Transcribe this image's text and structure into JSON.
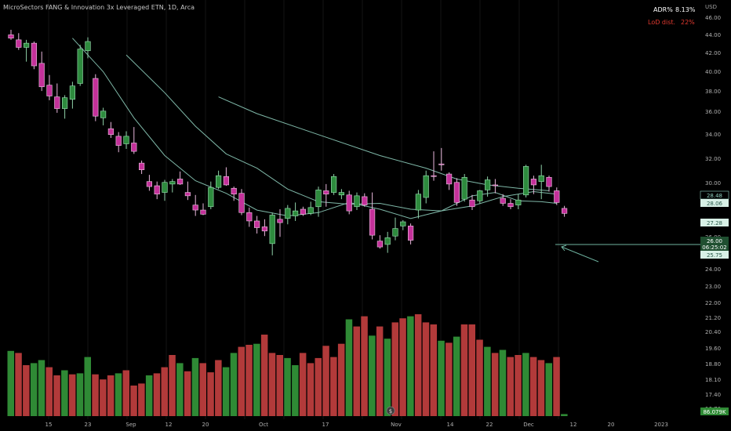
{
  "chart_title": "MicroSectors FANG & Innovation 3x Leveraged ETN, 1D, Arca",
  "currency": "USD",
  "indicators": {
    "adr_label": "ADR%",
    "adr_value": "8.13%",
    "lod_label": "LoD dist.",
    "lod_value": "22%"
  },
  "price_labels": {
    "ma_upper": "28.48",
    "ma_lower": "28.06",
    "ma_third": "27.28",
    "last_price": "26.00",
    "countdown": "06:25:02",
    "low_tag": "25.75",
    "volume": "86.079K"
  },
  "colors": {
    "background": "#000000",
    "up": "#2e8b3e",
    "down": "#c4319a",
    "bear_volume": "#b23a3a",
    "bull_volume": "#2f8a35",
    "ma_line": "#7fb8a8",
    "axis_text": "#b0b0b0",
    "grid": "#141414",
    "adr_color": "#ffffff",
    "lod_color": "#e0392f"
  },
  "chart_data": {
    "type": "candlestick",
    "title": "MicroSectors FANG & Innovation 3x Leveraged ETN, 1D, Arca",
    "y_axis_ticks": [
      "46.00",
      "44.00",
      "42.00",
      "40.00",
      "38.00",
      "36.00",
      "34.00",
      "32.00",
      "30.00",
      "28.00",
      "26.00",
      "24.00",
      "23.00",
      "22.00",
      "21.20",
      "20.40",
      "19.60",
      "18.80",
      "18.10",
      "17.40",
      "16.70"
    ],
    "x_axis_ticks": [
      "15",
      "23",
      "Sep",
      "12",
      "20",
      "Oct",
      "17",
      "Nov",
      "14",
      "22",
      "Dec",
      "12",
      "20",
      "2023"
    ],
    "candles": [
      {
        "o": 47.4,
        "h": 48.0,
        "l": 46.8,
        "c": 47.0
      },
      {
        "o": 46.8,
        "h": 47.6,
        "l": 45.6,
        "c": 45.9
      },
      {
        "o": 45.9,
        "h": 46.8,
        "l": 44.2,
        "c": 46.4
      },
      {
        "o": 46.4,
        "h": 46.6,
        "l": 43.3,
        "c": 43.7
      },
      {
        "o": 44.0,
        "h": 45.4,
        "l": 40.7,
        "c": 41.2
      },
      {
        "o": 41.4,
        "h": 42.6,
        "l": 39.6,
        "c": 40.1
      },
      {
        "o": 40.0,
        "h": 41.6,
        "l": 38.1,
        "c": 38.6
      },
      {
        "o": 38.6,
        "h": 40.2,
        "l": 37.4,
        "c": 39.9
      },
      {
        "o": 39.7,
        "h": 41.8,
        "l": 38.6,
        "c": 41.3
      },
      {
        "o": 41.6,
        "h": 46.2,
        "l": 41.3,
        "c": 45.7
      },
      {
        "o": 45.5,
        "h": 47.1,
        "l": 44.6,
        "c": 46.6
      },
      {
        "o": 42.2,
        "h": 42.7,
        "l": 37.1,
        "c": 37.7
      },
      {
        "o": 37.5,
        "h": 38.7,
        "l": 36.6,
        "c": 38.3
      },
      {
        "o": 36.2,
        "h": 37.0,
        "l": 35.1,
        "c": 35.5
      },
      {
        "o": 35.3,
        "h": 35.8,
        "l": 33.4,
        "c": 34.2
      },
      {
        "o": 34.4,
        "h": 35.9,
        "l": 33.8,
        "c": 35.3
      },
      {
        "o": 34.5,
        "h": 36.4,
        "l": 33.2,
        "c": 33.5
      },
      {
        "o": 32.1,
        "h": 32.4,
        "l": 30.8,
        "c": 31.3
      },
      {
        "o": 29.9,
        "h": 30.7,
        "l": 28.8,
        "c": 29.3
      },
      {
        "o": 29.4,
        "h": 29.9,
        "l": 27.8,
        "c": 28.4
      },
      {
        "o": 28.6,
        "h": 30.1,
        "l": 27.6,
        "c": 29.8
      },
      {
        "o": 29.6,
        "h": 30.2,
        "l": 28.6,
        "c": 29.9
      },
      {
        "o": 30.2,
        "h": 31.1,
        "l": 29.5,
        "c": 29.6
      },
      {
        "o": 28.6,
        "h": 29.9,
        "l": 27.7,
        "c": 28.2
      },
      {
        "o": 27.1,
        "h": 28.3,
        "l": 25.8,
        "c": 26.5
      },
      {
        "o": 26.5,
        "h": 27.3,
        "l": 25.9,
        "c": 26.0
      },
      {
        "o": 26.9,
        "h": 29.9,
        "l": 26.6,
        "c": 29.2
      },
      {
        "o": 29.2,
        "h": 31.2,
        "l": 29.0,
        "c": 30.6
      },
      {
        "o": 30.5,
        "h": 31.6,
        "l": 29.4,
        "c": 29.5
      },
      {
        "o": 29.1,
        "h": 29.3,
        "l": 27.6,
        "c": 28.4
      },
      {
        "o": 28.5,
        "h": 29.0,
        "l": 25.9,
        "c": 26.2
      },
      {
        "o": 26.2,
        "h": 26.8,
        "l": 24.5,
        "c": 25.2
      },
      {
        "o": 25.2,
        "h": 25.8,
        "l": 23.7,
        "c": 24.4
      },
      {
        "o": 24.5,
        "h": 25.4,
        "l": 23.4,
        "c": 24.0
      },
      {
        "o": 22.5,
        "h": 26.2,
        "l": 21.1,
        "c": 25.9
      },
      {
        "o": 25.4,
        "h": 26.6,
        "l": 23.3,
        "c": 25.0
      },
      {
        "o": 25.5,
        "h": 27.1,
        "l": 24.8,
        "c": 26.7
      },
      {
        "o": 25.8,
        "h": 27.4,
        "l": 25.2,
        "c": 26.4
      },
      {
        "o": 26.6,
        "h": 26.9,
        "l": 25.8,
        "c": 26.0
      },
      {
        "o": 26.1,
        "h": 27.5,
        "l": 25.9,
        "c": 26.8
      },
      {
        "o": 26.9,
        "h": 29.3,
        "l": 25.7,
        "c": 28.9
      },
      {
        "o": 28.8,
        "h": 29.6,
        "l": 26.9,
        "c": 28.4
      },
      {
        "o": 28.6,
        "h": 30.8,
        "l": 28.3,
        "c": 30.5
      },
      {
        "o": 28.3,
        "h": 29.0,
        "l": 27.8,
        "c": 28.6
      },
      {
        "o": 28.3,
        "h": 28.8,
        "l": 26.0,
        "c": 26.4
      },
      {
        "o": 26.9,
        "h": 28.6,
        "l": 26.5,
        "c": 28.2
      },
      {
        "o": 28.1,
        "h": 28.5,
        "l": 26.9,
        "c": 27.1
      },
      {
        "o": 26.6,
        "h": 28.6,
        "l": 23.0,
        "c": 23.5
      },
      {
        "o": 22.8,
        "h": 23.5,
        "l": 21.9,
        "c": 22.1
      },
      {
        "o": 22.4,
        "h": 23.9,
        "l": 21.4,
        "c": 23.2
      },
      {
        "o": 23.4,
        "h": 25.6,
        "l": 22.9,
        "c": 24.3
      },
      {
        "o": 24.6,
        "h": 25.3,
        "l": 24.1,
        "c": 25.1
      },
      {
        "o": 24.6,
        "h": 24.9,
        "l": 22.4,
        "c": 22.9
      },
      {
        "o": 26.5,
        "h": 28.9,
        "l": 25.5,
        "c": 28.4
      },
      {
        "o": 28.0,
        "h": 31.2,
        "l": 27.3,
        "c": 30.6
      },
      {
        "o": 30.6,
        "h": 33.5,
        "l": 30.0,
        "c": 30.5
      },
      {
        "o": 32.0,
        "h": 33.9,
        "l": 31.2,
        "c": 31.9
      },
      {
        "o": 30.8,
        "h": 31.0,
        "l": 28.9,
        "c": 29.6
      },
      {
        "o": 29.8,
        "h": 30.3,
        "l": 27.0,
        "c": 27.4
      },
      {
        "o": 27.8,
        "h": 30.8,
        "l": 27.5,
        "c": 30.4
      },
      {
        "o": 27.7,
        "h": 28.3,
        "l": 26.5,
        "c": 26.9
      },
      {
        "o": 27.6,
        "h": 28.9,
        "l": 27.3,
        "c": 28.8
      },
      {
        "o": 28.9,
        "h": 30.5,
        "l": 28.1,
        "c": 30.1
      },
      {
        "o": 29.5,
        "h": 30.2,
        "l": 28.5,
        "c": 29.4
      },
      {
        "o": 27.9,
        "h": 28.4,
        "l": 27.0,
        "c": 27.3
      },
      {
        "o": 27.3,
        "h": 27.8,
        "l": 26.6,
        "c": 26.9
      },
      {
        "o": 27.1,
        "h": 28.4,
        "l": 26.6,
        "c": 27.7
      },
      {
        "o": 28.3,
        "h": 31.9,
        "l": 28.0,
        "c": 31.7
      },
      {
        "o": 30.2,
        "h": 30.6,
        "l": 28.4,
        "c": 29.5
      },
      {
        "o": 29.9,
        "h": 31.9,
        "l": 27.8,
        "c": 30.6
      },
      {
        "o": 30.4,
        "h": 30.6,
        "l": 28.7,
        "c": 29.3
      },
      {
        "o": 28.8,
        "h": 29.2,
        "l": 27.1,
        "c": 27.4
      },
      {
        "o": 26.7,
        "h": 27.0,
        "l": 25.7,
        "c": 26.1
      }
    ],
    "volume": [
      {
        "v": 0.64,
        "up": true
      },
      {
        "v": 0.62,
        "up": false
      },
      {
        "v": 0.5,
        "up": false
      },
      {
        "v": 0.52,
        "up": true
      },
      {
        "v": 0.55,
        "up": true
      },
      {
        "v": 0.48,
        "up": false
      },
      {
        "v": 0.4,
        "up": false
      },
      {
        "v": 0.45,
        "up": true
      },
      {
        "v": 0.41,
        "up": false
      },
      {
        "v": 0.42,
        "up": true
      },
      {
        "v": 0.58,
        "up": true
      },
      {
        "v": 0.41,
        "up": false
      },
      {
        "v": 0.36,
        "up": false
      },
      {
        "v": 0.4,
        "up": false
      },
      {
        "v": 0.42,
        "up": true
      },
      {
        "v": 0.45,
        "up": false
      },
      {
        "v": 0.3,
        "up": false
      },
      {
        "v": 0.32,
        "up": false
      },
      {
        "v": 0.4,
        "up": true
      },
      {
        "v": 0.42,
        "up": false
      },
      {
        "v": 0.48,
        "up": false
      },
      {
        "v": 0.6,
        "up": false
      },
      {
        "v": 0.52,
        "up": true
      },
      {
        "v": 0.44,
        "up": false
      },
      {
        "v": 0.57,
        "up": true
      },
      {
        "v": 0.52,
        "up": false
      },
      {
        "v": 0.43,
        "up": false
      },
      {
        "v": 0.55,
        "up": false
      },
      {
        "v": 0.48,
        "up": true
      },
      {
        "v": 0.62,
        "up": true
      },
      {
        "v": 0.68,
        "up": false
      },
      {
        "v": 0.7,
        "up": false
      },
      {
        "v": 0.71,
        "up": true
      },
      {
        "v": 0.8,
        "up": false
      },
      {
        "v": 0.62,
        "up": false
      },
      {
        "v": 0.6,
        "up": false
      },
      {
        "v": 0.57,
        "up": true
      },
      {
        "v": 0.5,
        "up": true
      },
      {
        "v": 0.62,
        "up": false
      },
      {
        "v": 0.52,
        "up": false
      },
      {
        "v": 0.57,
        "up": false
      },
      {
        "v": 0.69,
        "up": false
      },
      {
        "v": 0.58,
        "up": false
      },
      {
        "v": 0.71,
        "up": false
      },
      {
        "v": 0.95,
        "up": true
      },
      {
        "v": 0.88,
        "up": false
      },
      {
        "v": 0.98,
        "up": false
      },
      {
        "v": 0.79,
        "up": true
      },
      {
        "v": 0.88,
        "up": false
      },
      {
        "v": 0.76,
        "up": true
      },
      {
        "v": 0.92,
        "up": false
      },
      {
        "v": 0.96,
        "up": false
      },
      {
        "v": 0.98,
        "up": true
      },
      {
        "v": 1.0,
        "up": false
      },
      {
        "v": 0.92,
        "up": false
      },
      {
        "v": 0.9,
        "up": false
      },
      {
        "v": 0.74,
        "up": true
      },
      {
        "v": 0.72,
        "up": false
      },
      {
        "v": 0.78,
        "up": true
      },
      {
        "v": 0.9,
        "up": false
      },
      {
        "v": 0.9,
        "up": false
      },
      {
        "v": 0.75,
        "up": false
      },
      {
        "v": 0.68,
        "up": true
      },
      {
        "v": 0.62,
        "up": false
      },
      {
        "v": 0.65,
        "up": true
      },
      {
        "v": 0.58,
        "up": false
      },
      {
        "v": 0.6,
        "up": false
      },
      {
        "v": 0.62,
        "up": true
      },
      {
        "v": 0.58,
        "up": false
      },
      {
        "v": 0.55,
        "up": false
      },
      {
        "v": 0.52,
        "up": true
      },
      {
        "v": 0.58,
        "up": false
      },
      {
        "v": 0.02,
        "up": true
      }
    ],
    "ma_upper": [
      {
        "i": 27,
        "v": 40.0
      },
      {
        "i": 32,
        "v": 38.0
      },
      {
        "i": 40,
        "v": 35.5
      },
      {
        "i": 48,
        "v": 33.0
      },
      {
        "i": 54,
        "v": 31.5
      },
      {
        "i": 58,
        "v": 30.2
      },
      {
        "i": 62,
        "v": 29.5
      },
      {
        "i": 66,
        "v": 29.1
      },
      {
        "i": 70,
        "v": 28.8
      }
    ],
    "ma_mid": [
      {
        "i": 15,
        "v": 45.0
      },
      {
        "i": 20,
        "v": 40.5
      },
      {
        "i": 24,
        "v": 36.5
      },
      {
        "i": 28,
        "v": 33.2
      },
      {
        "i": 32,
        "v": 31.5
      },
      {
        "i": 36,
        "v": 29.0
      },
      {
        "i": 40,
        "v": 27.5
      },
      {
        "i": 44,
        "v": 27.2
      },
      {
        "i": 48,
        "v": 27.3
      },
      {
        "i": 52,
        "v": 26.6
      },
      {
        "i": 56,
        "v": 26.4
      },
      {
        "i": 60,
        "v": 27.0
      },
      {
        "i": 64,
        "v": 28.1
      },
      {
        "i": 68,
        "v": 28.7
      },
      {
        "i": 71,
        "v": 28.4
      }
    ],
    "ma_fast": [
      {
        "i": 8,
        "v": 47.0
      },
      {
        "i": 12,
        "v": 43.0
      },
      {
        "i": 16,
        "v": 37.5
      },
      {
        "i": 20,
        "v": 33.0
      },
      {
        "i": 24,
        "v": 30.0
      },
      {
        "i": 28,
        "v": 28.5
      },
      {
        "i": 32,
        "v": 26.5
      },
      {
        "i": 36,
        "v": 25.8
      },
      {
        "i": 40,
        "v": 26.2
      },
      {
        "i": 44,
        "v": 27.4
      },
      {
        "i": 48,
        "v": 26.6
      },
      {
        "i": 52,
        "v": 25.5
      },
      {
        "i": 56,
        "v": 26.4
      },
      {
        "i": 60,
        "v": 28.2
      },
      {
        "i": 63,
        "v": 28.6
      },
      {
        "i": 66,
        "v": 27.6
      },
      {
        "i": 69,
        "v": 27.5
      },
      {
        "i": 71,
        "v": 27.3
      }
    ]
  }
}
